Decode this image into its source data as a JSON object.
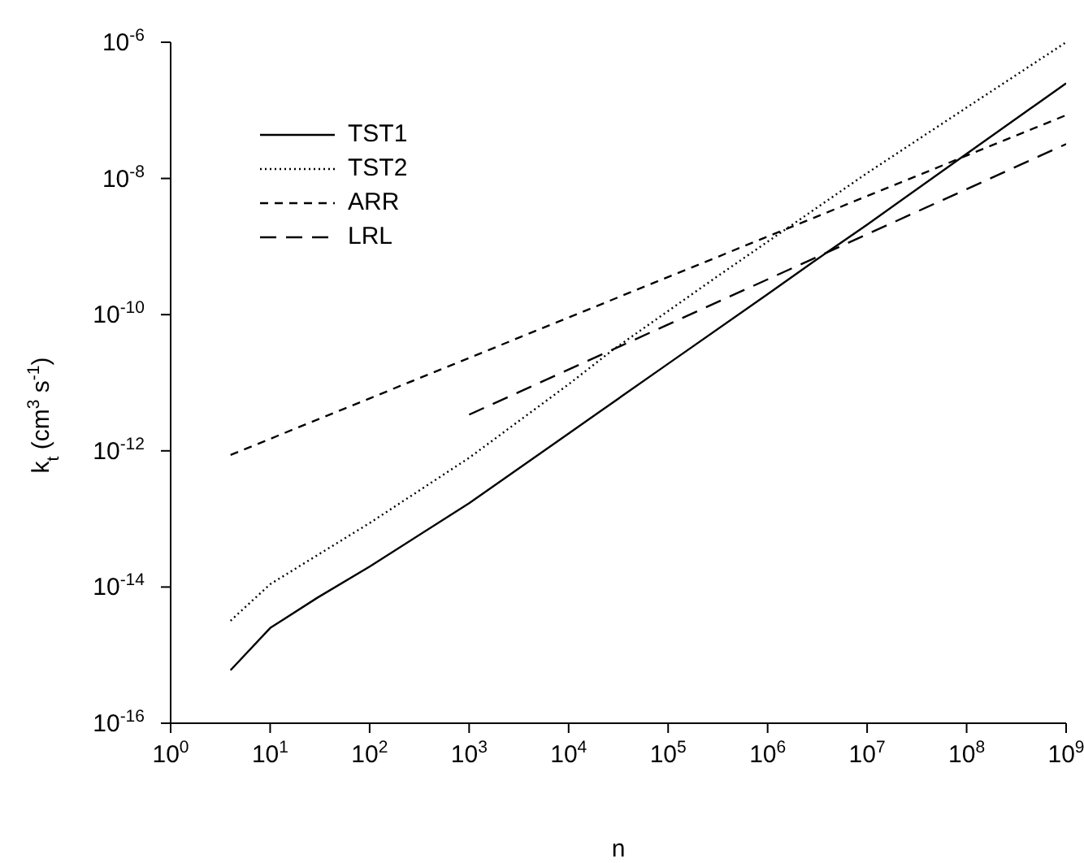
{
  "chart_data": {
    "type": "line",
    "xlabel": "n",
    "ylabel": "k$_{t}$ (cm$^{3}$ s$^{-1}$)",
    "log": "xy",
    "xlim": [
      1,
      1000000000
    ],
    "ylim": [
      1e-16,
      1e-06
    ],
    "xticks": [
      {
        "value": 1,
        "label": "10$^{0}$"
      },
      {
        "value": 10,
        "label": "10$^{1}$"
      },
      {
        "value": 100,
        "label": "10$^{2}$"
      },
      {
        "value": 1000,
        "label": "10$^{3}$"
      },
      {
        "value": 10000,
        "label": "10$^{4}$"
      },
      {
        "value": 100000,
        "label": "10$^{5}$"
      },
      {
        "value": 1000000,
        "label": "10$^{6}$"
      },
      {
        "value": 10000000,
        "label": "10$^{7}$"
      },
      {
        "value": 100000000,
        "label": "10$^{8}$"
      },
      {
        "value": 1000000000,
        "label": "10$^{9}$"
      }
    ],
    "yticks": [
      {
        "value": 1e-16,
        "label": "10$^{-16}$"
      },
      {
        "value": 1e-14,
        "label": "10$^{-14}$"
      },
      {
        "value": 1e-12,
        "label": "10$^{-12}$"
      },
      {
        "value": 1e-10,
        "label": "10$^{-10}$"
      },
      {
        "value": 1e-08,
        "label": "10$^{-8}$"
      },
      {
        "value": 1e-06,
        "label": "10$^{-6}$"
      }
    ],
    "grid": false,
    "legend": "top left",
    "marker": "none",
    "series": [
      {
        "name": "TST1",
        "color": "#000000",
        "line_style": "solid",
        "x": [
          4,
          10,
          30,
          100,
          1000,
          10000,
          100000,
          1000000,
          2800000,
          10000000,
          100000000,
          1000000000
        ],
        "values": [
          6e-16,
          2.5e-15,
          7e-15,
          2e-14,
          1.7e-13,
          1.8e-12,
          1.9e-11,
          2e-10,
          5.8e-10,
          2.1e-09,
          2.3e-08,
          2.5e-07
        ]
      },
      {
        "name": "TST2",
        "color": "#000000",
        "line_style": "dotted",
        "x": [
          4,
          10,
          100,
          1000,
          10000,
          27500,
          300000,
          10000000,
          100000000,
          1000000000
        ],
        "values": [
          3.2e-15,
          1.1e-14,
          8.7e-14,
          7.9e-13,
          9.5e-12,
          3e-11,
          3.5e-10,
          1.2e-08,
          1.1e-07,
          1e-06
        ]
      },
      {
        "name": "ARR",
        "color": "#000000",
        "line_style": "dashed",
        "x": [
          4,
          1000000000
        ],
        "values": [
          8.7e-13,
          8.5e-08
        ]
      },
      {
        "name": "LRL",
        "color": "#000000",
        "line_style": "dashed",
        "x": [
          1000,
          1000000000
        ],
        "values": [
          3.4e-12,
          3.2e-08
        ]
      }
    ]
  }
}
